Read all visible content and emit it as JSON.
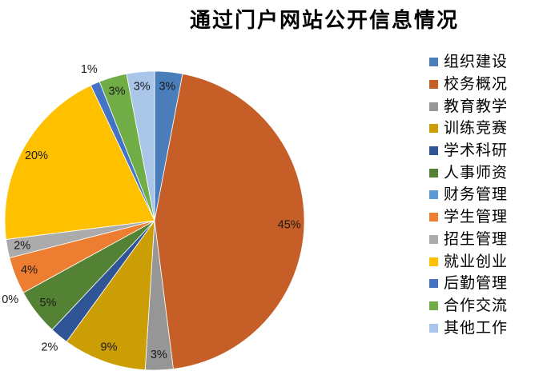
{
  "chart_data": {
    "type": "pie",
    "title": "通过门户网站公开信息情况",
    "legend_position": "right",
    "start_angle_deg": 0,
    "direction": "clockwise",
    "total": 100,
    "label_color": "#1A1A1A",
    "slices": [
      {
        "label": "组织建设",
        "value": 3,
        "pct_label": "3%",
        "color": "#4A7EBB",
        "label_placement": "inside"
      },
      {
        "label": "校务概况",
        "value": 45,
        "pct_label": "45%",
        "color": "#C55F27",
        "label_placement": "inside"
      },
      {
        "label": "教育教学",
        "value": 3,
        "pct_label": "3%",
        "color": "#969696",
        "label_placement": "inside"
      },
      {
        "label": "训练竞赛",
        "value": 9,
        "pct_label": "9%",
        "color": "#CC9E06",
        "label_placement": "inside"
      },
      {
        "label": "学术科研",
        "value": 2,
        "pct_label": "2%",
        "color": "#2F5597",
        "label_placement": "outside"
      },
      {
        "label": "人事师资",
        "value": 5,
        "pct_label": "5%",
        "color": "#548235",
        "label_placement": "inside"
      },
      {
        "label": "财务管理",
        "value": 0,
        "pct_label": "0%",
        "color": "#5B9BD5",
        "label_placement": "outside"
      },
      {
        "label": "学生管理",
        "value": 4,
        "pct_label": "4%",
        "color": "#ED7D31",
        "label_placement": "inside"
      },
      {
        "label": "招生管理",
        "value": 2,
        "pct_label": "2%",
        "color": "#ABABAB",
        "label_placement": "inside"
      },
      {
        "label": "就业创业",
        "value": 20,
        "pct_label": "20%",
        "color": "#FFC000",
        "label_placement": "inside"
      },
      {
        "label": "后勤管理",
        "value": 1,
        "pct_label": "1%",
        "color": "#4472C4",
        "label_placement": "outside"
      },
      {
        "label": "合作交流",
        "value": 3,
        "pct_label": "3%",
        "color": "#70AD47",
        "label_placement": "inside"
      },
      {
        "label": "其他工作",
        "value": 3,
        "pct_label": "3%",
        "color": "#A9C6E9",
        "label_placement": "inside"
      }
    ]
  }
}
